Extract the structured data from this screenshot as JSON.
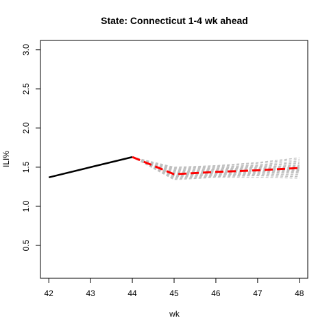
{
  "chart_data": {
    "type": "line",
    "title": "State: Connecticut 1-4 wk ahead",
    "xlabel": "wk",
    "ylabel": "ILI%",
    "xlim": [
      41.8,
      48.2
    ],
    "ylim": [
      0.08,
      3.12
    ],
    "x_ticks": [
      42,
      43,
      44,
      45,
      46,
      47,
      48
    ],
    "y_ticks": [
      0.5,
      1.0,
      1.5,
      2.0,
      2.5,
      3.0
    ],
    "y_tick_labels": [
      "0.5",
      "1.0",
      "1.5",
      "2.0",
      "2.5",
      "3.0"
    ],
    "grid": false,
    "series": [
      {
        "role": "observed",
        "color": "#000000",
        "style": "solid",
        "x": [
          42,
          43,
          44
        ],
        "y": [
          1.37,
          1.5,
          1.63
        ]
      },
      {
        "role": "forecast-mean",
        "color": "#ff0000",
        "style": "dashed",
        "x": [
          44,
          45,
          46,
          47,
          48
        ],
        "y": [
          1.63,
          1.41,
          1.44,
          1.46,
          1.49
        ]
      }
    ],
    "ensemble": {
      "color": "#bebebe",
      "style": "dashed",
      "x": [
        44,
        45,
        46,
        47,
        48
      ],
      "y": [
        [
          1.63,
          1.34,
          1.37,
          1.37,
          1.36
        ],
        [
          1.63,
          1.35,
          1.38,
          1.39,
          1.38
        ],
        [
          1.63,
          1.36,
          1.39,
          1.4,
          1.4
        ],
        [
          1.63,
          1.37,
          1.4,
          1.41,
          1.41
        ],
        [
          1.63,
          1.38,
          1.4,
          1.42,
          1.43
        ],
        [
          1.63,
          1.38,
          1.41,
          1.43,
          1.44
        ],
        [
          1.63,
          1.39,
          1.42,
          1.44,
          1.45
        ],
        [
          1.63,
          1.4,
          1.42,
          1.45,
          1.46
        ],
        [
          1.63,
          1.4,
          1.43,
          1.45,
          1.47
        ],
        [
          1.63,
          1.41,
          1.44,
          1.46,
          1.48
        ],
        [
          1.63,
          1.42,
          1.44,
          1.47,
          1.49
        ],
        [
          1.63,
          1.42,
          1.45,
          1.48,
          1.5
        ],
        [
          1.63,
          1.43,
          1.46,
          1.49,
          1.51
        ],
        [
          1.63,
          1.44,
          1.47,
          1.5,
          1.52
        ],
        [
          1.63,
          1.45,
          1.47,
          1.5,
          1.53
        ],
        [
          1.63,
          1.46,
          1.48,
          1.51,
          1.55
        ],
        [
          1.63,
          1.47,
          1.49,
          1.52,
          1.56
        ],
        [
          1.63,
          1.48,
          1.5,
          1.53,
          1.58
        ],
        [
          1.63,
          1.49,
          1.51,
          1.55,
          1.6
        ],
        [
          1.63,
          1.5,
          1.52,
          1.56,
          1.62
        ]
      ]
    }
  }
}
